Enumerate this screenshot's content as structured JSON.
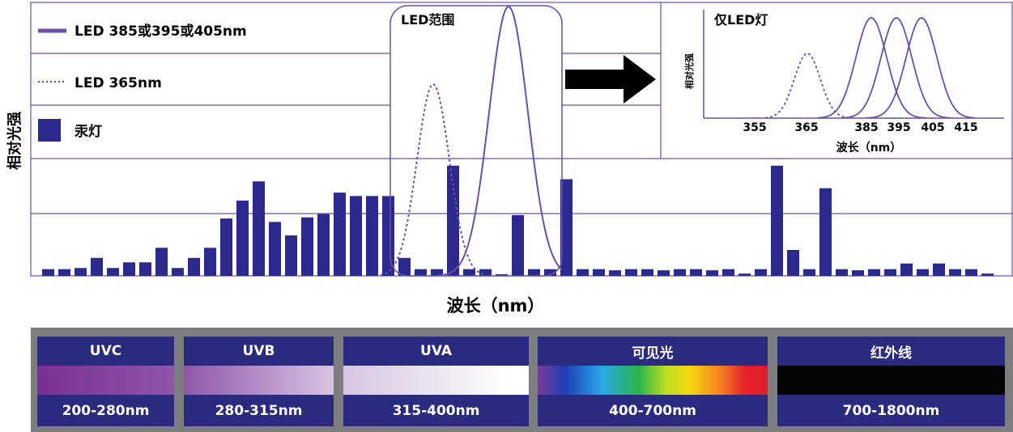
{
  "chart_data": {
    "type": "bar",
    "ylabel": "相对光强",
    "xlabel": "波长（nm）",
    "legend": [
      {
        "label": "LED 385或395或405nm",
        "style": "solid-line",
        "color": "#6a50a8"
      },
      {
        "label": "LED 365nm",
        "style": "dotted-line",
        "color": "#6a50a8"
      },
      {
        "label": "汞灯",
        "style": "bar",
        "color": "#2b2a8c"
      }
    ],
    "led_range_label": "LED范围",
    "mercury_lamp_bars": [
      0.06,
      0.06,
      0.07,
      0.16,
      0.07,
      0.12,
      0.12,
      0.25,
      0.07,
      0.16,
      0.25,
      0.51,
      0.67,
      0.84,
      0.48,
      0.36,
      0.52,
      0.55,
      0.74,
      0.71,
      0.71,
      0.71,
      0.16,
      0.06,
      0.06,
      0.98,
      0.06,
      0.06,
      0.01,
      0.54,
      0.06,
      0.06,
      0.86,
      0.06,
      0.06,
      0.05,
      0.06,
      0.06,
      0.05,
      0.06,
      0.06,
      0.05,
      0.06,
      0.02,
      0.06,
      0.98,
      0.23,
      0.06,
      0.78,
      0.06,
      0.05,
      0.06,
      0.06,
      0.11,
      0.06,
      0.11,
      0.06,
      0.06,
      0.02
    ],
    "inset": {
      "title": "仅LED灯",
      "ylabel": "相对光强",
      "xlabel": "波长（nm）",
      "x_ticks": [
        "355",
        "365",
        "385",
        "395",
        "405",
        "415"
      ],
      "peaks_nm": [
        365,
        385,
        395,
        405
      ]
    }
  },
  "spectrum_bands": [
    {
      "name": "UVC",
      "range": "200-280nm"
    },
    {
      "name": "UVB",
      "range": "280-315nm"
    },
    {
      "name": "UVA",
      "range": "315-400nm"
    },
    {
      "name": "可见光",
      "range": "400-700nm"
    },
    {
      "name": "红外线",
      "range": "700-1800nm"
    }
  ],
  "colors": {
    "band_header": "#2a2b7e",
    "led_curve": "#6a50a8",
    "bars": "#2b2a8c",
    "arrow": "#000000"
  }
}
